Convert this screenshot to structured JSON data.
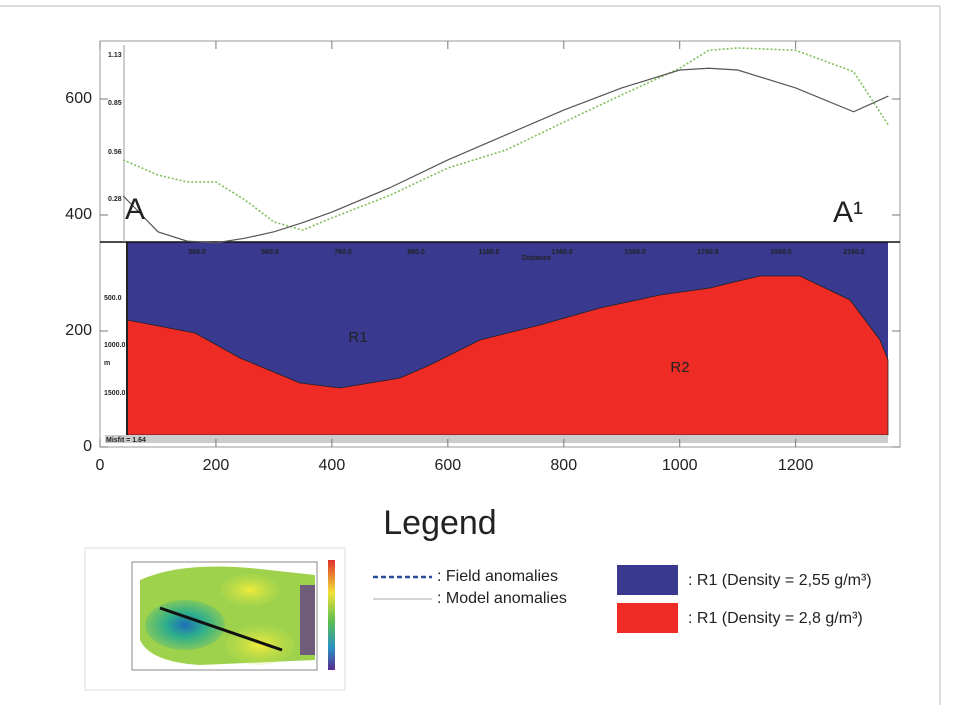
{
  "chart_data": {
    "type": "line",
    "xlim": [
      0,
      1380
    ],
    "ylim": [
      0,
      700
    ],
    "xticks": [
      0,
      200,
      400,
      600,
      800,
      1000,
      1200
    ],
    "yticks": [
      0,
      200,
      400,
      600
    ],
    "x": [
      40,
      100,
      150,
      200,
      250,
      300,
      350,
      400,
      500,
      600,
      700,
      800,
      900,
      1000,
      1050,
      1100,
      1200,
      1300,
      1360
    ],
    "series": [
      {
        "name": ": Field anomalies",
        "color": "#7fbf5a",
        "dash": "dotted",
        "values": [
          495,
          469,
          457,
          457,
          426,
          388,
          374,
          395,
          434,
          481,
          512,
          560,
          607,
          653,
          684,
          688,
          684,
          647,
          555
        ]
      },
      {
        "name": ": Model anomalies",
        "color": "#555555",
        "dash": "solid",
        "values": [
          433,
          371,
          355,
          352,
          360,
          371,
          387,
          405,
          447,
          495,
          538,
          581,
          619,
          650,
          653,
          650,
          619,
          578,
          605
        ]
      }
    ],
    "annotations": [
      "A",
      "A¹",
      "R1",
      "R2"
    ],
    "section_labels": [
      "1.13",
      "0.85",
      "0.56",
      "0.28",
      "500.0",
      "1000.0",
      "m",
      "1500.0",
      "Misfit = 1.64",
      "Distance"
    ],
    "section_scale": [
      "360.0",
      "560.0",
      "760.0",
      "960.0",
      "1160.0",
      "1360.0",
      "1560.0",
      "1760.0",
      "1960.0",
      "2160.0"
    ],
    "legend_title": "Legend",
    "legend_line_colors": [
      "#2b4fa0",
      "#aaaaaa"
    ],
    "regions": [
      {
        "label": ": R1 (Density = 2,55 g/m³)",
        "color": "#38398f"
      },
      {
        "label": ": R1 (Density = 2,8 g/m³)",
        "color": "#ee2b24"
      }
    ]
  }
}
